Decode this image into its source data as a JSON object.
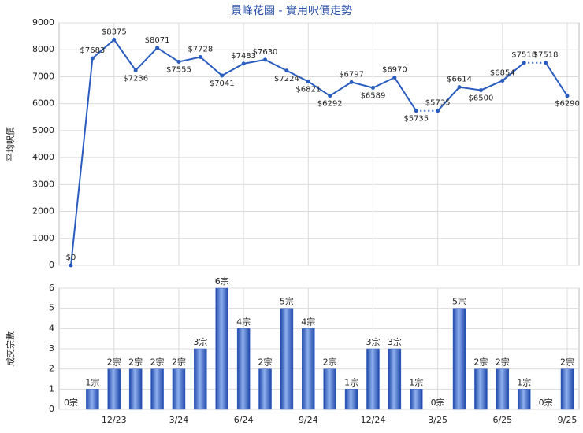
{
  "chart_data": [
    {
      "type": "line",
      "title": "景峰花園 - 實用呎價走勢",
      "y_label": "平均呎價",
      "values": [
        0,
        7683,
        8375,
        7236,
        8071,
        7555,
        7728,
        7041,
        7483,
        7630,
        7224,
        6821,
        6292,
        6797,
        6589,
        6970,
        5735,
        5735,
        6614,
        6500,
        6854,
        7518,
        7518,
        6290
      ],
      "value_labels": [
        "$0",
        "$7683",
        "$8375",
        "$7236",
        "$8071",
        "$7555",
        "$7728",
        "$7041",
        "$7483",
        "$7630",
        "$7224",
        "$6821",
        "$6292",
        "$6797",
        "$6589",
        "$6970",
        "$5735",
        "$5735",
        "$6614",
        "$6500",
        "$6854",
        "$7518",
        "$7518",
        "$6290"
      ],
      "color": "#2a5cbf",
      "ylim": [
        0,
        9000
      ],
      "yticks": [
        0,
        1000,
        2000,
        3000,
        4000,
        5000,
        6000,
        7000,
        8000,
        9000
      ],
      "grid": true
    },
    {
      "type": "bar",
      "y_label": "成交宗數",
      "categories": [
        null,
        null,
        "12/23",
        null,
        null,
        "3/24",
        null,
        null,
        "6/24",
        null,
        null,
        "9/24",
        null,
        null,
        "12/24",
        null,
        null,
        "3/25",
        null,
        null,
        "6/25",
        null,
        null,
        "9/25"
      ],
      "values": [
        0,
        1,
        2,
        2,
        2,
        2,
        3,
        6,
        4,
        2,
        5,
        4,
        2,
        1,
        3,
        3,
        1,
        0,
        5,
        2,
        2,
        1,
        0,
        2
      ],
      "value_labels": [
        "0宗",
        "1宗",
        "2宗",
        "2宗",
        "2宗",
        "2宗",
        "3宗",
        "6宗",
        "4宗",
        "2宗",
        "5宗",
        "4宗",
        "2宗",
        "1宗",
        "3宗",
        "3宗",
        "1宗",
        "0宗",
        "5宗",
        "2宗",
        "2宗",
        "1宗",
        "0宗",
        "2宗"
      ],
      "color": "#2f5fc4",
      "ylim": [
        0,
        6
      ],
      "yticks": [
        0,
        1,
        2,
        3,
        4,
        5,
        6
      ],
      "grid": true
    }
  ]
}
